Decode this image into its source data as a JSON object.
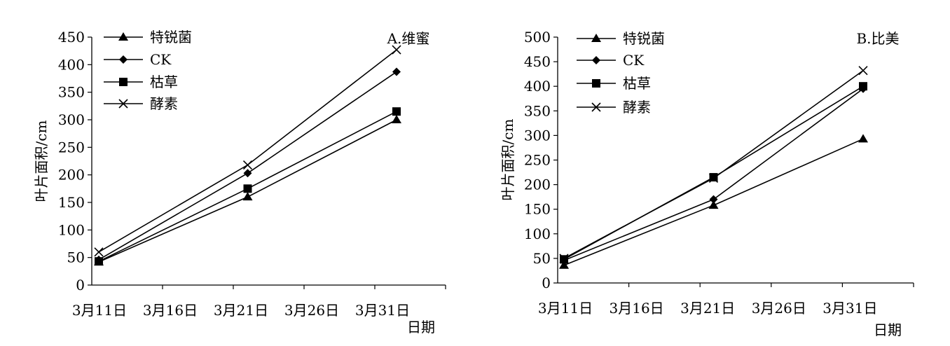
{
  "chart_data": [
    {
      "type": "line",
      "title": "A.维蜜",
      "xlabel": "日期",
      "ylabel": "叶片面积/cm",
      "x_ticks": [
        "3月11日",
        "3月16日",
        "3月21日",
        "3月26日",
        "3月31日"
      ],
      "x": [
        "3月11日",
        "3月21日",
        "3月31日"
      ],
      "ylim": [
        0,
        450
      ],
      "y_ticks": [
        0,
        50,
        100,
        150,
        200,
        250,
        300,
        350,
        400,
        450
      ],
      "legend": "top-left",
      "series": [
        {
          "name": "特锐菌",
          "marker": "triangle",
          "values": [
            42,
            160,
            300
          ]
        },
        {
          "name": "CK",
          "marker": "diamond",
          "values": [
            46,
            203,
            387
          ]
        },
        {
          "name": "枯草",
          "marker": "square",
          "values": [
            43,
            175,
            315
          ]
        },
        {
          "name": "酵素",
          "marker": "cross",
          "values": [
            60,
            218,
            427
          ]
        }
      ]
    },
    {
      "type": "line",
      "title": "B.比美",
      "xlabel": "日期",
      "ylabel": "叶片面积/cm",
      "x_ticks": [
        "3月11日",
        "3月16日",
        "3月21日",
        "3月26日",
        "3月31日"
      ],
      "x": [
        "3月11日",
        "3月21日",
        "3月31日"
      ],
      "ylim": [
        0,
        500
      ],
      "y_ticks": [
        0,
        50,
        100,
        150,
        200,
        250,
        300,
        350,
        400,
        450,
        500
      ],
      "legend": "top-left",
      "series": [
        {
          "name": "特锐菌",
          "marker": "triangle",
          "values": [
            36,
            158,
            293
          ]
        },
        {
          "name": "CK",
          "marker": "diamond",
          "values": [
            46,
            170,
            395
          ]
        },
        {
          "name": "枯草",
          "marker": "square",
          "values": [
            48,
            215,
            400
          ]
        },
        {
          "name": "酵素",
          "marker": "cross",
          "values": [
            50,
            213,
            432
          ]
        }
      ]
    }
  ]
}
